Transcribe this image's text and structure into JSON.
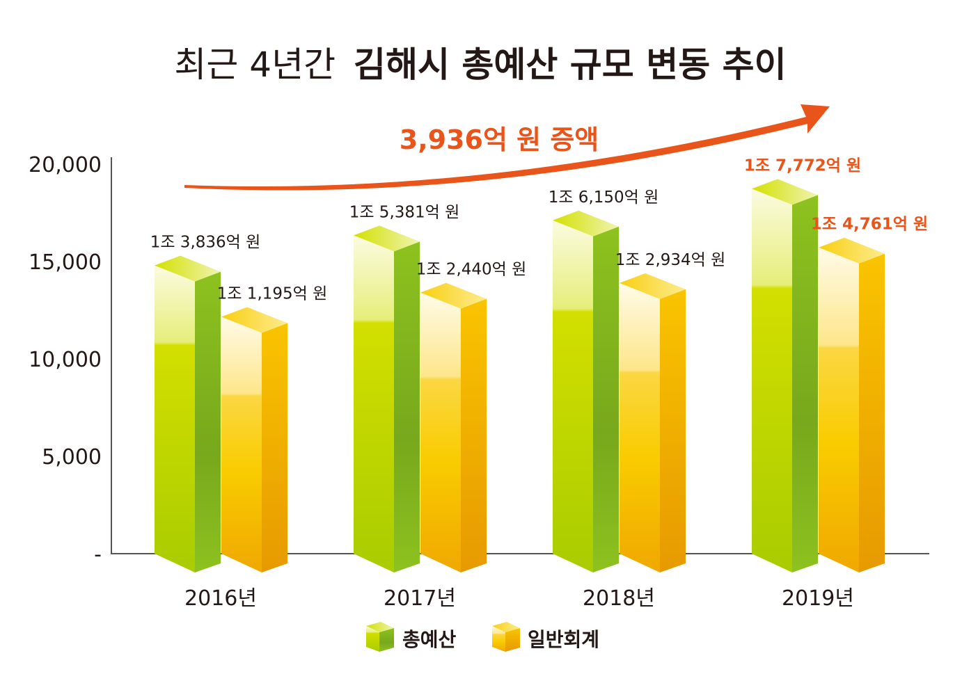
{
  "chart_data": {
    "type": "bar",
    "title_light": "최근 4년간",
    "title_bold": "김해시 총예산 규모 변동 추이",
    "annotation": "3,936억 원 증액",
    "categories": [
      "2016년",
      "2017년",
      "2018년",
      "2019년"
    ],
    "y_ticks": [
      "-",
      "5,000",
      "10,000",
      "15,000",
      "20,000"
    ],
    "ylim": [
      0,
      20000
    ],
    "grid": false,
    "legend_placement": "bottom",
    "series": [
      {
        "name": "총예산",
        "values": [
          13836,
          15381,
          16150,
          17772
        ],
        "labels": [
          "1조 3,836억 원",
          "1조 5,381억 원",
          "1조 6,150억 원",
          "1조 7,772억 원"
        ],
        "color": "#8cc21a"
      },
      {
        "name": "일반회계",
        "values": [
          11195,
          12440,
          12934,
          14761
        ],
        "labels": [
          "1조 1,195억 원",
          "1조 2,440억 원",
          "1조 2,934억 원",
          "1조 4,761억 원"
        ],
        "color": "#f5b400"
      }
    ],
    "colors": {
      "highlight": "#e8541a",
      "text": "#231815",
      "axis": "#555555"
    }
  }
}
